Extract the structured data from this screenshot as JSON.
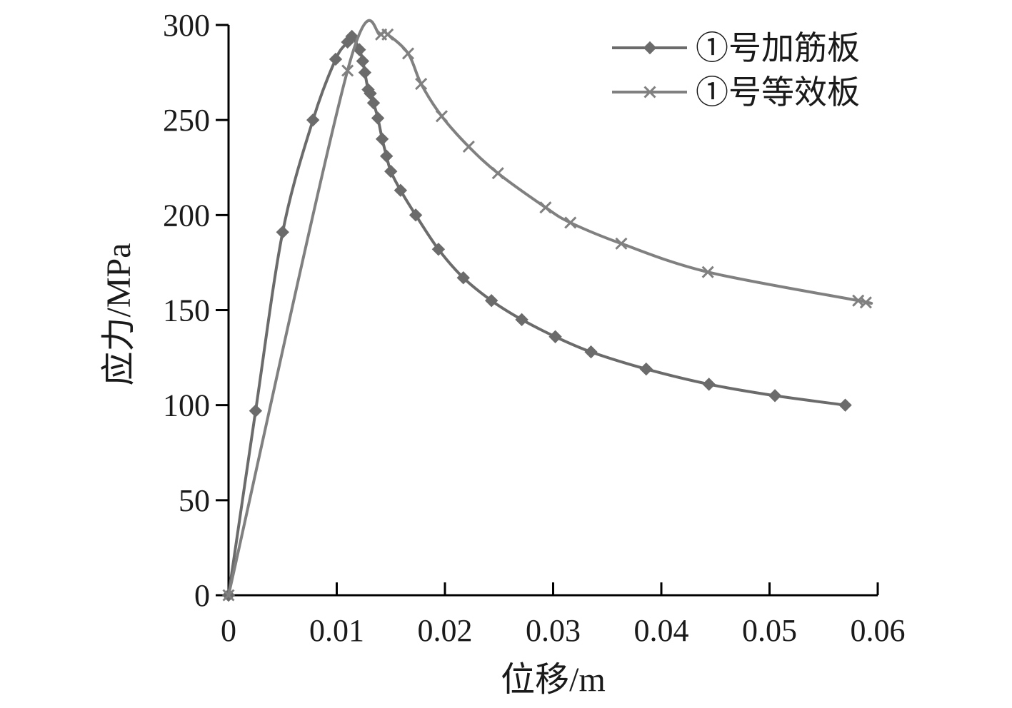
{
  "chart_data": {
    "type": "line",
    "xlabel": "位移/m",
    "ylabel": "应力/MPa",
    "xlim": [
      0,
      0.06
    ],
    "ylim": [
      0,
      300
    ],
    "x_ticks": [
      0,
      0.01,
      0.02,
      0.03,
      0.04,
      0.05,
      0.06
    ],
    "x_tick_labels": [
      "0",
      "0.01",
      "0.02",
      "0.03",
      "0.04",
      "0.05",
      "0.06"
    ],
    "y_ticks": [
      0,
      50,
      100,
      150,
      200,
      250,
      300
    ],
    "y_tick_labels": [
      "0",
      "50",
      "100",
      "150",
      "200",
      "250",
      "300"
    ],
    "grid": false,
    "legend_position": "top-right",
    "series": [
      {
        "name": "①号加筋板",
        "marker": "diamond",
        "color": "#6b6b6b",
        "x": [
          0,
          0.0025,
          0.005,
          0.0078,
          0.0099,
          0.011,
          0.0114,
          0.0121,
          0.0124,
          0.0126,
          0.0129,
          0.0131,
          0.0134,
          0.0138,
          0.0142,
          0.0146,
          0.015,
          0.0159,
          0.0173,
          0.0194,
          0.0217,
          0.0243,
          0.0271,
          0.0302,
          0.0335,
          0.0386,
          0.0444,
          0.0505,
          0.057
        ],
        "y": [
          0,
          97,
          191,
          250,
          282,
          291,
          294,
          287,
          281,
          275,
          266,
          264,
          259,
          251,
          240,
          231,
          223,
          213,
          200,
          182,
          167,
          155,
          145,
          136,
          128,
          119,
          111,
          105,
          100
        ]
      },
      {
        "name": "①号等效板",
        "marker": "x",
        "color": "#808080",
        "x": [
          0,
          0.011,
          0.0141,
          0.0147,
          0.0166,
          0.0178,
          0.0197,
          0.0222,
          0.0249,
          0.0293,
          0.0316,
          0.0363,
          0.0443,
          0.0582,
          0.0589
        ],
        "y": [
          0,
          276,
          295,
          295,
          285,
          269,
          252,
          236,
          222,
          204,
          196,
          185,
          170,
          155,
          154
        ]
      }
    ]
  }
}
